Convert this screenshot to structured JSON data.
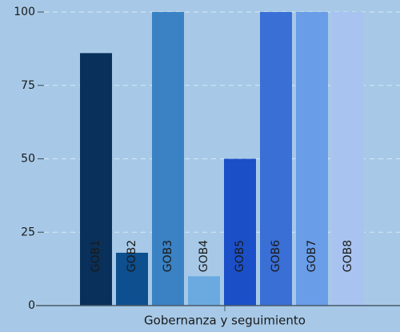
{
  "chart_data": {
    "type": "bar",
    "x_label": "Gobernanza y seguimiento",
    "categories": [
      "GOB1",
      "GOB2",
      "GOB3",
      "GOB4",
      "GOB5",
      "GOB6",
      "GOB7",
      "GOB8"
    ],
    "values": [
      86,
      18,
      100,
      10,
      50,
      100,
      100,
      100
    ],
    "colors": [
      "#08305a",
      "#0d4f8f",
      "#3a82c4",
      "#6aaae0",
      "#1a4fc8",
      "#3a6fd6",
      "#6a9de8",
      "#a8c3f0"
    ],
    "ylim": [
      0,
      100
    ],
    "yticks": [
      0,
      25,
      50,
      75,
      100
    ],
    "grid": true
  }
}
